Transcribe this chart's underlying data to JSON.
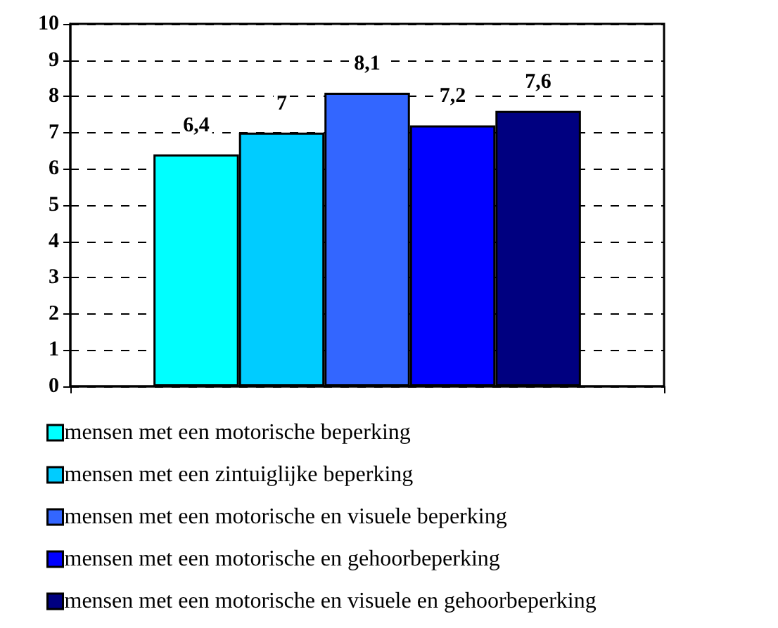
{
  "chart_data": {
    "type": "bar",
    "categories": [
      null
    ],
    "series": [
      {
        "name": "mensen met een motorische beperking",
        "color": "#00ffff",
        "values": [
          6.4
        ],
        "value_labels": [
          "6,4"
        ]
      },
      {
        "name": "mensen met een zintuiglijke beperking",
        "color": "#00ccff",
        "values": [
          7
        ],
        "value_labels": [
          "7"
        ]
      },
      {
        "name": "mensen met een motorische en visuele beperking",
        "color": "#3366ff",
        "values": [
          8.1
        ],
        "value_labels": [
          "8,1"
        ]
      },
      {
        "name": "mensen met een motorische en gehoorbeperking",
        "color": "#0000ff",
        "values": [
          7.2
        ],
        "value_labels": [
          "7,2"
        ]
      },
      {
        "name": "mensen met een motorische en visuele en gehoorbeperking",
        "color": "#000080",
        "values": [
          7.6
        ],
        "value_labels": [
          "7,6"
        ]
      }
    ],
    "ylim": [
      0,
      10
    ],
    "yticks": [
      0,
      1,
      2,
      3,
      4,
      5,
      6,
      7,
      8,
      9,
      10
    ],
    "grid": "y",
    "legend": "bottom"
  }
}
